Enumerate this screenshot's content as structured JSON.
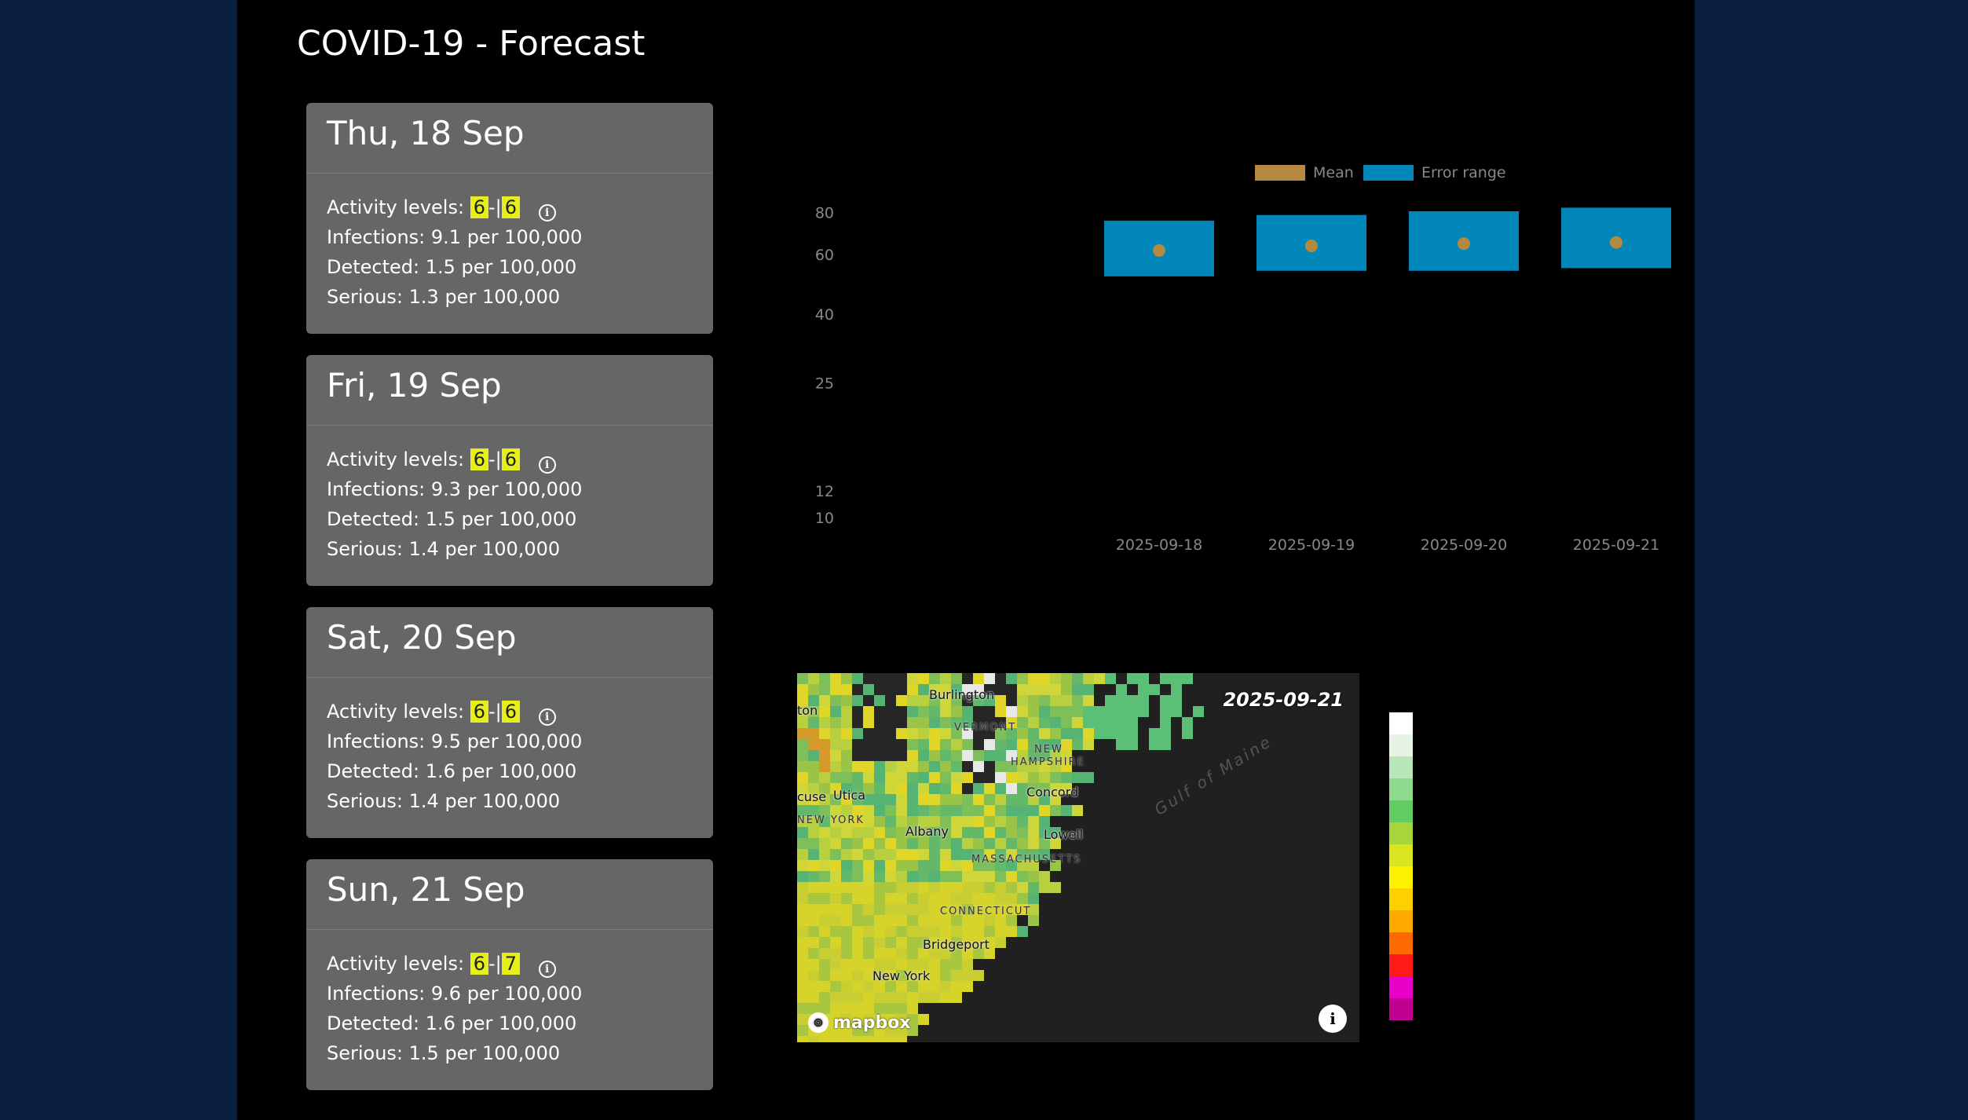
{
  "page": {
    "title": "COVID-19 - Forecast"
  },
  "forecast_days": [
    {
      "date_label": "Thu, 18 Sep",
      "activity_label": "Activity levels:",
      "level_low": "6",
      "level_sep": "-|",
      "level_high": "6",
      "infections": "Infections: 9.1 per 100,000",
      "detected": "Detected: 1.5 per 100,000",
      "serious": "Serious: 1.3 per 100,000"
    },
    {
      "date_label": "Fri, 19 Sep",
      "activity_label": "Activity levels:",
      "level_low": "6",
      "level_sep": "-|",
      "level_high": "6",
      "infections": "Infections: 9.3 per 100,000",
      "detected": "Detected: 1.5 per 100,000",
      "serious": "Serious: 1.4 per 100,000"
    },
    {
      "date_label": "Sat, 20 Sep",
      "activity_label": "Activity levels:",
      "level_low": "6",
      "level_sep": "-|",
      "level_high": "6",
      "infections": "Infections: 9.5 per 100,000",
      "detected": "Detected: 1.6 per 100,000",
      "serious": "Serious: 1.4 per 100,000"
    },
    {
      "date_label": "Sun, 21 Sep",
      "activity_label": "Activity levels:",
      "level_low": "6",
      "level_sep": "-|",
      "level_high": "7",
      "infections": "Infections: 9.6 per 100,000",
      "detected": "Detected: 1.6 per 100,000",
      "serious": "Serious: 1.5 per 100,000"
    }
  ],
  "chart_data": {
    "type": "bar",
    "categories": [
      "2025-09-18",
      "2025-09-19",
      "2025-09-20",
      "2025-09-21"
    ],
    "series": [
      {
        "name": "Mean",
        "color": "#b5893f",
        "values": [
          62,
          64,
          65,
          65.5
        ]
      },
      {
        "name": "Error range",
        "color": "#0086b8",
        "low": [
          52,
          54,
          54,
          55
        ],
        "high": [
          76,
          79,
          81,
          83
        ]
      }
    ],
    "yticks": [
      10,
      12,
      25,
      40,
      60,
      80
    ],
    "yscale": "log",
    "ylim": [
      10,
      85
    ],
    "legend_position": "top-center",
    "grid": false,
    "axis_text_color": "#888888"
  },
  "map": {
    "date": "2025-09-21",
    "attribution": "mapbox",
    "labels": [
      {
        "text": "Burlington",
        "kind": "city"
      },
      {
        "text": "ton",
        "kind": "city"
      },
      {
        "text": "VERMONT",
        "kind": "state"
      },
      {
        "text": "NEW",
        "kind": "state"
      },
      {
        "text": "HAMPSHIRE",
        "kind": "state"
      },
      {
        "text": "Concord",
        "kind": "city"
      },
      {
        "text": "cuse",
        "kind": "city"
      },
      {
        "text": "Utica",
        "kind": "city"
      },
      {
        "text": "NEW YORK",
        "kind": "state"
      },
      {
        "text": "Albany",
        "kind": "city"
      },
      {
        "text": "Lowell",
        "kind": "city"
      },
      {
        "text": "MASSACHUSETTS",
        "kind": "state"
      },
      {
        "text": "CONNECTICUT",
        "kind": "state"
      },
      {
        "text": "Bridgeport",
        "kind": "city"
      },
      {
        "text": "New York",
        "kind": "city"
      },
      {
        "text": "Gulf of Maine",
        "kind": "water"
      }
    ]
  },
  "color_scale": [
    "#ffffff",
    "#e6f4e6",
    "#b9e6b9",
    "#8fdc8f",
    "#63cc63",
    "#a6d63c",
    "#d9e61f",
    "#fff200",
    "#ffd000",
    "#ffa800",
    "#ff6a00",
    "#ff1a1a",
    "#e600c8",
    "#c00090"
  ]
}
